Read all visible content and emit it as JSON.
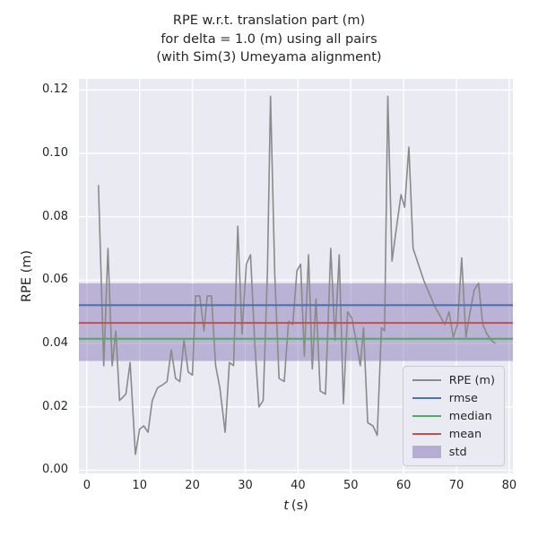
{
  "title": {
    "line1": "RPE w.r.t. translation part (m)",
    "line2": "for delta = 1.0 (m) using all pairs",
    "line3": "(with Sim(3) Umeyama alignment)"
  },
  "chart_data": {
    "type": "line",
    "title": "RPE w.r.t. translation part (m) / for delta = 1.0 (m) using all pairs / (with Sim(3) Umeyama alignment)",
    "xlabel": "t (s)",
    "xlabel_var": "t",
    "xlabel_unit": "(s)",
    "ylabel": "RPE (m)",
    "xlim": [
      -1.5,
      80.7
    ],
    "ylim": [
      -0.001,
      0.1235
    ],
    "xticks": [
      0,
      10,
      20,
      30,
      40,
      50,
      60,
      70,
      80
    ],
    "yticks": [
      0,
      0.02,
      0.04,
      0.06,
      0.08,
      0.1,
      0.12
    ],
    "grid": true,
    "legend_position": "lower right",
    "series": [
      {
        "name": "RPE (m)",
        "x": [
          2.2,
          3.2,
          4.0,
          4.8,
          5.5,
          6.2,
          7.4,
          8.2,
          9.2,
          10.0,
          10.8,
          11.6,
          12.4,
          13.4,
          14.4,
          15.2,
          16.0,
          16.8,
          17.6,
          18.4,
          19.2,
          20.0,
          20.6,
          21.4,
          22.2,
          22.8,
          23.6,
          24.4,
          25.2,
          26.2,
          27.0,
          27.8,
          28.6,
          29.4,
          30.2,
          31.0,
          31.8,
          32.6,
          33.4,
          34.2,
          34.8,
          35.6,
          36.4,
          37.4,
          38.2,
          39.0,
          39.8,
          40.5,
          41.2,
          42.0,
          42.7,
          43.4,
          44.2,
          45.2,
          46.2,
          47.0,
          47.8,
          48.6,
          49.4,
          50.2,
          51.0,
          51.8,
          52.4,
          53.2,
          54.2,
          55.0,
          55.8,
          56.4,
          57.0,
          57.8,
          58.6,
          59.5,
          60.2,
          61.0,
          61.8,
          62.8,
          63.8,
          64.8,
          65.8,
          66.8,
          67.8,
          68.6,
          69.4,
          70.2,
          71.0,
          71.8,
          72.6,
          73.4,
          74.2,
          75.0,
          75.8,
          76.6,
          77.4
        ],
        "y": [
          0.09,
          0.033,
          0.07,
          0.033,
          0.044,
          0.022,
          0.024,
          0.034,
          0.005,
          0.013,
          0.014,
          0.012,
          0.022,
          0.026,
          0.027,
          0.028,
          0.038,
          0.029,
          0.028,
          0.041,
          0.031,
          0.03,
          0.055,
          0.055,
          0.044,
          0.055,
          0.055,
          0.033,
          0.026,
          0.012,
          0.034,
          0.033,
          0.077,
          0.043,
          0.065,
          0.068,
          0.04,
          0.02,
          0.022,
          0.062,
          0.118,
          0.062,
          0.029,
          0.028,
          0.047,
          0.046,
          0.063,
          0.065,
          0.036,
          0.068,
          0.032,
          0.054,
          0.025,
          0.024,
          0.07,
          0.041,
          0.068,
          0.021,
          0.05,
          0.048,
          0.041,
          0.033,
          0.045,
          0.015,
          0.014,
          0.011,
          0.045,
          0.044,
          0.118,
          0.066,
          0.076,
          0.087,
          0.083,
          0.102,
          0.07,
          0.065,
          0.06,
          0.056,
          0.052,
          0.049,
          0.046,
          0.05,
          0.042,
          0.046,
          0.067,
          0.042,
          0.05,
          0.057,
          0.059,
          0.046,
          0.043,
          0.041,
          0.04
        ]
      }
    ],
    "stats": {
      "rmse": 0.0521,
      "mean": 0.0465,
      "median": 0.0415,
      "std_band": [
        0.0345,
        0.059
      ]
    },
    "colors": {
      "series": "#8a8a8a",
      "rmse": "#4c72b0",
      "median": "#55a868",
      "mean": "#c44e52",
      "std": "#8172b2",
      "background": "#eaeaf2",
      "grid": "#ffffff",
      "text": "#262626"
    },
    "legend": [
      {
        "label": "RPE (m)",
        "color": "#8a8a8a",
        "swatch": "line"
      },
      {
        "label": "rmse",
        "color": "#4c72b0",
        "swatch": "line"
      },
      {
        "label": "median",
        "color": "#55a868",
        "swatch": "line"
      },
      {
        "label": "mean",
        "color": "#c44e52",
        "swatch": "line"
      },
      {
        "label": "std",
        "color": "#8172b2",
        "swatch": "patch"
      }
    ]
  }
}
